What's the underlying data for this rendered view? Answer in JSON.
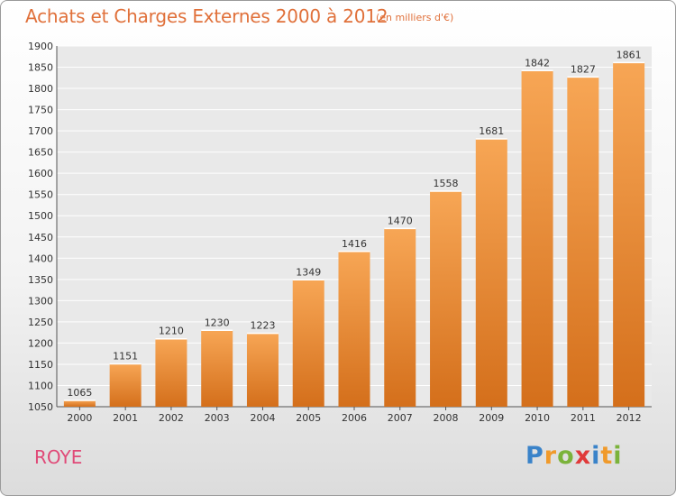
{
  "header": {
    "title": "Achats et Charges Externes 2000 à 2012",
    "unit": "(en milliers d'€)"
  },
  "footer": {
    "city": "ROYE",
    "brand": "Proxiti"
  },
  "colors": {
    "title": "#e0703a",
    "city": "#e04a78",
    "bar_light": "#f7a655",
    "bar_dark": "#d46f1b"
  },
  "chart_data": {
    "type": "bar",
    "title": "Achats et Charges Externes 2000 à 2012",
    "xlabel": "",
    "ylabel": "",
    "categories": [
      "2000",
      "2001",
      "2002",
      "2003",
      "2004",
      "2005",
      "2006",
      "2007",
      "2008",
      "2009",
      "2010",
      "2011",
      "2012"
    ],
    "values": [
      1065,
      1151,
      1210,
      1230,
      1223,
      1349,
      1416,
      1470,
      1558,
      1681,
      1842,
      1827,
      1861
    ],
    "ylim": [
      1050,
      1900
    ],
    "yticks": [
      1050,
      1100,
      1150,
      1200,
      1250,
      1300,
      1350,
      1400,
      1450,
      1500,
      1550,
      1600,
      1650,
      1700,
      1750,
      1800,
      1850,
      1900
    ],
    "grid": true,
    "data_labels": true
  }
}
